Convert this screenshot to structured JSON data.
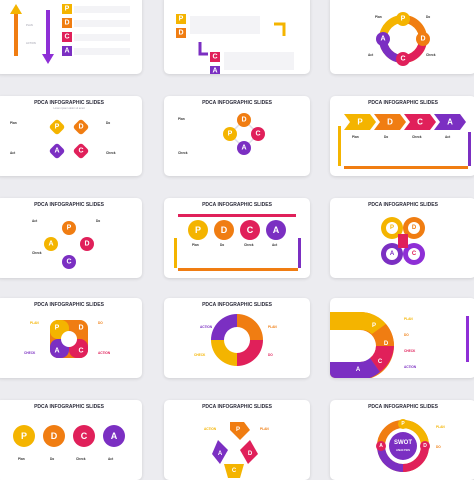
{
  "slide_title": "PDCA INFOGRAPHIC SLIDES",
  "slide_subtitle": "Lorem ipsum dolor sit amet",
  "letters": {
    "p": "P",
    "d": "D",
    "c": "C",
    "a": "A"
  },
  "labels": {
    "plan": "Plan",
    "do": "Do",
    "check": "Check",
    "act": "Act",
    "plan_upper": "PLAN",
    "do_upper": "DO",
    "check_upper": "CHECK",
    "act_upper": "ACTION"
  },
  "swot": {
    "title": "SWOT",
    "subtitle": "ANALYSIS"
  },
  "colors": {
    "yellow": "#f4b400",
    "orange": "#f07d12",
    "red": "#e0205a",
    "purple": "#7b2fc2",
    "violet": "#8e2fd6"
  },
  "icons": [
    "arrow-up-icon",
    "arrow-down-icon",
    "corner-arrow-icon",
    "chevron-arrow-icon",
    "cycle-arrow-icon"
  ]
}
